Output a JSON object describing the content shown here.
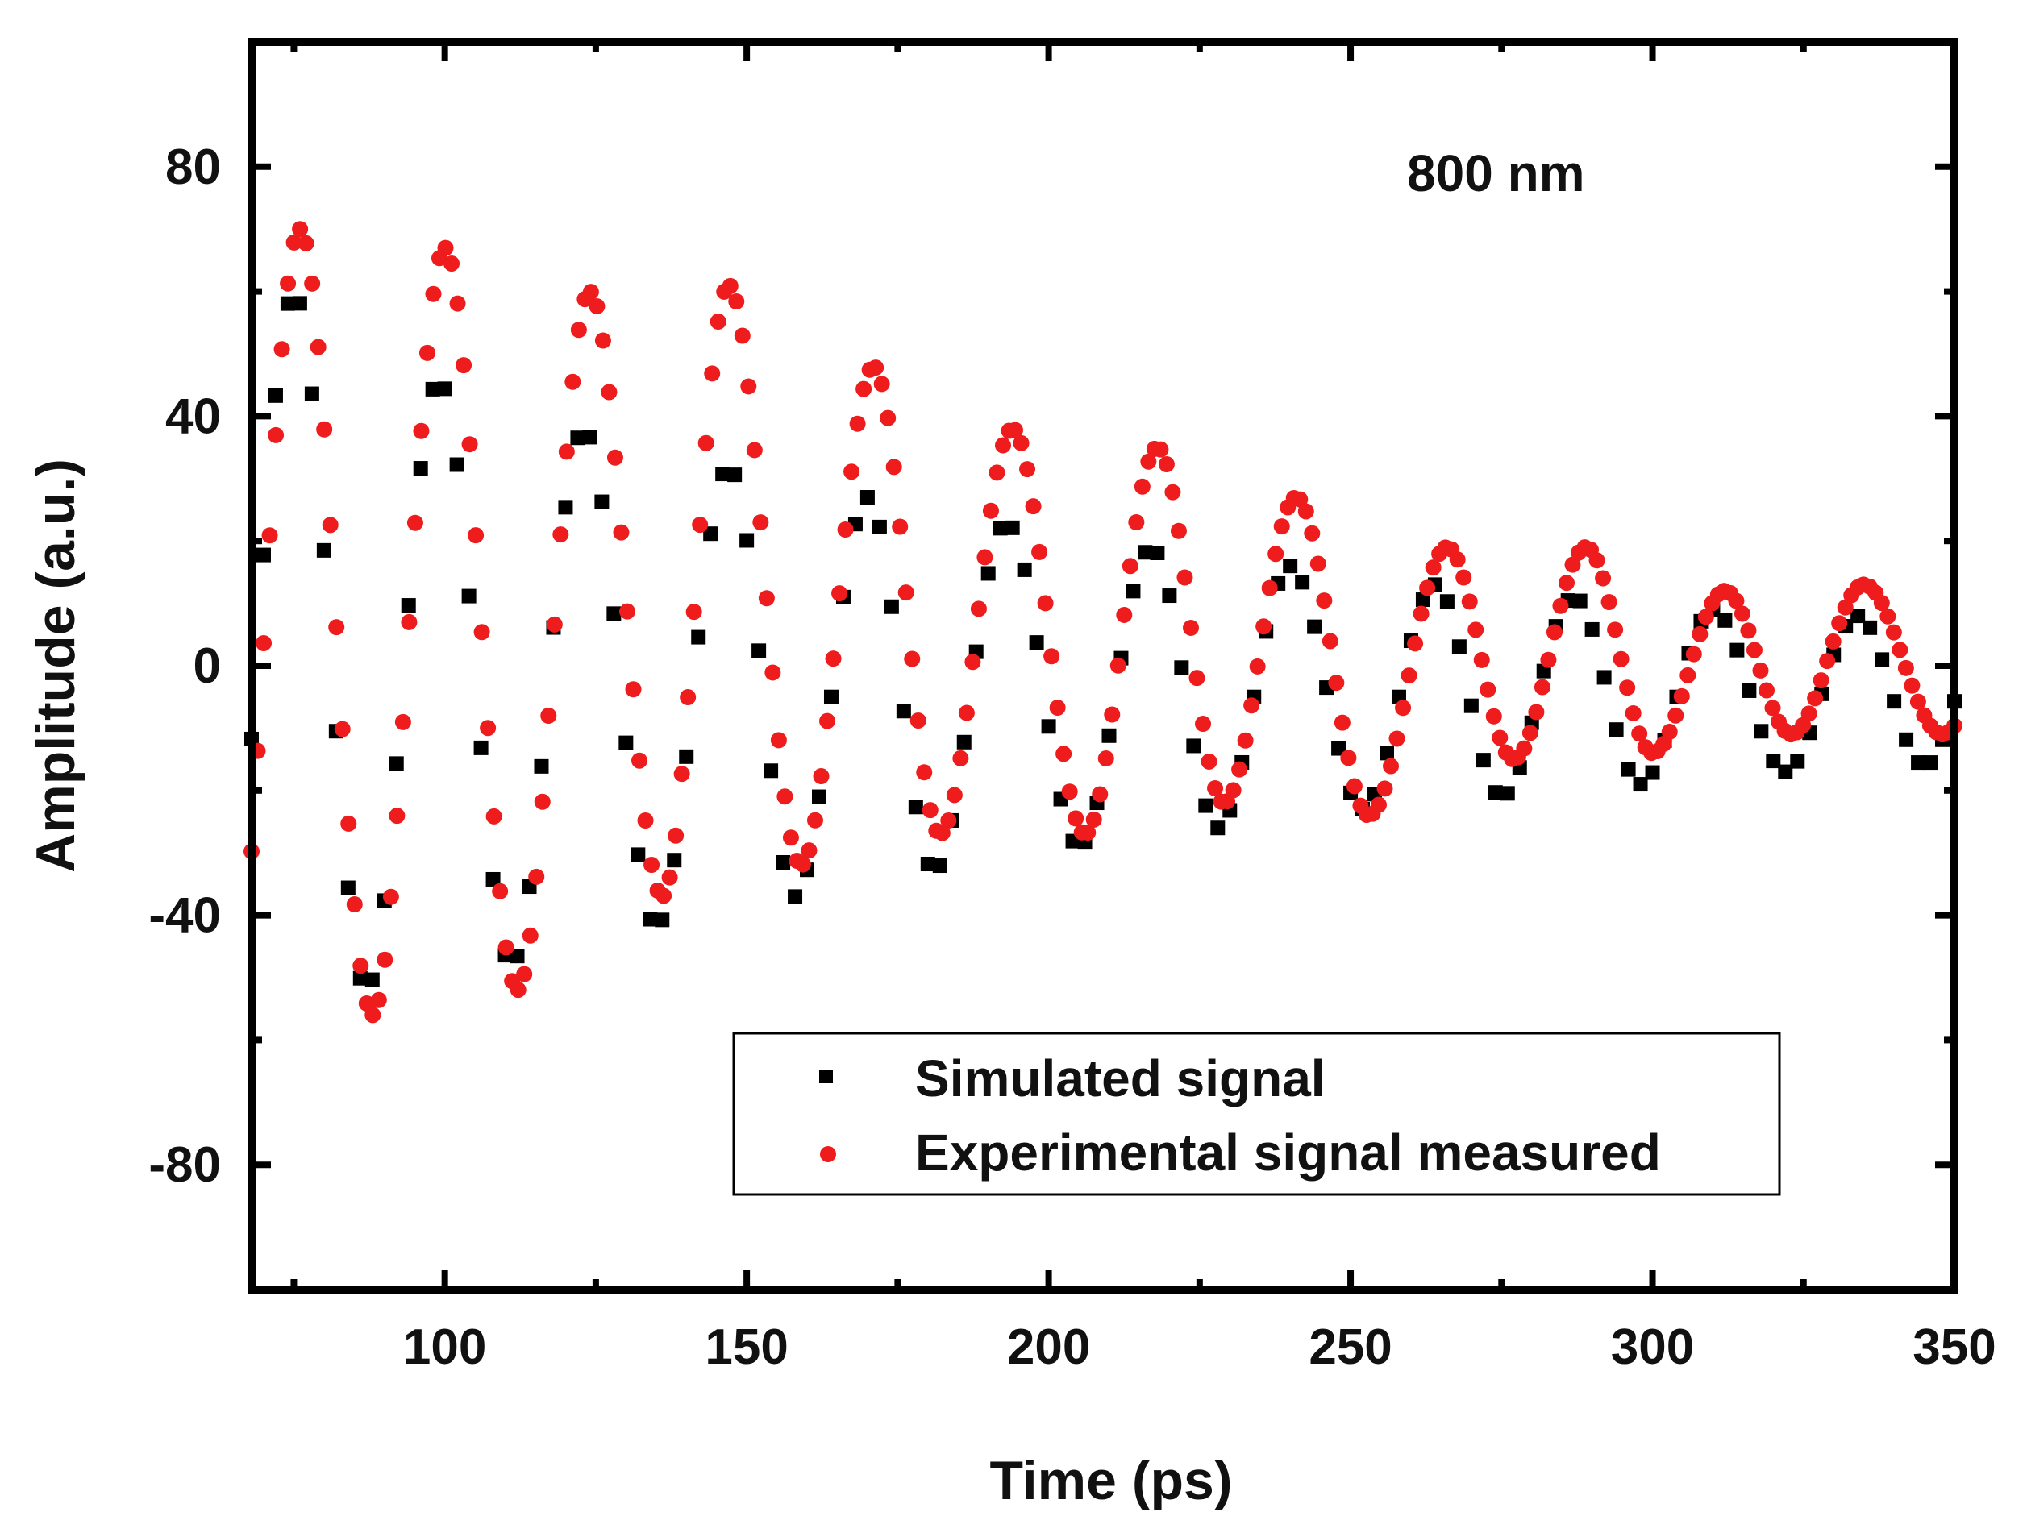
{
  "chart_data": {
    "type": "scatter",
    "title": "",
    "annotation": "800 nm",
    "xlabel": "Time (ps)",
    "ylabel": "Amplitude (a.u.)",
    "xlim": [
      68,
      350
    ],
    "ylim": [
      -100,
      100
    ],
    "xticks": [
      100,
      150,
      200,
      250,
      300,
      350
    ],
    "xtick_labels": [
      "100",
      "150",
      "200",
      "250",
      "300",
      "350"
    ],
    "yticks": [
      -80,
      -40,
      0,
      40,
      80
    ],
    "ytick_labels": [
      "-80",
      "-40",
      "0",
      "40",
      "80"
    ],
    "legend_position": "bottom-right",
    "series": [
      {
        "name": "Simulated signal",
        "marker": "square",
        "color": "#000000",
        "t_start": 68,
        "t_end": 350,
        "n_points": 142,
        "model": "damped-sine",
        "peak_times": [
          75,
          99,
          123,
          147,
          170,
          193,
          217,
          240,
          264,
          287,
          310,
          334
        ],
        "peak_values": [
          60,
          46,
          38,
          32,
          27,
          23,
          19,
          16,
          13,
          11,
          9,
          8
        ],
        "trough_times": [
          87,
          111,
          135,
          158,
          181,
          205,
          228,
          252,
          275,
          298,
          322,
          345
        ],
        "trough_values": [
          -52,
          -48,
          -42,
          -37,
          -33,
          -29,
          -26,
          -23,
          -21,
          -19,
          -17,
          -16
        ]
      },
      {
        "name": "Experimental signal measured",
        "marker": "circle",
        "color": "#ee1c1c",
        "t_start": 68,
        "t_end": 350,
        "n_points": 282,
        "model": "damped-sine",
        "peak_times": [
          76,
          100,
          124,
          147,
          171,
          194,
          218,
          241,
          266,
          289,
          312,
          335
        ],
        "peak_values": [
          70,
          67,
          60,
          61,
          48,
          38,
          35,
          27,
          19,
          19,
          12,
          13
        ],
        "trough_times": [
          88,
          112,
          136,
          159,
          182,
          206,
          229,
          253,
          277,
          300,
          323,
          348
        ],
        "trough_values": [
          -56,
          -52,
          -37,
          -32,
          -27,
          -27,
          -22,
          -24,
          -15,
          -14,
          -11,
          -11
        ]
      }
    ]
  }
}
